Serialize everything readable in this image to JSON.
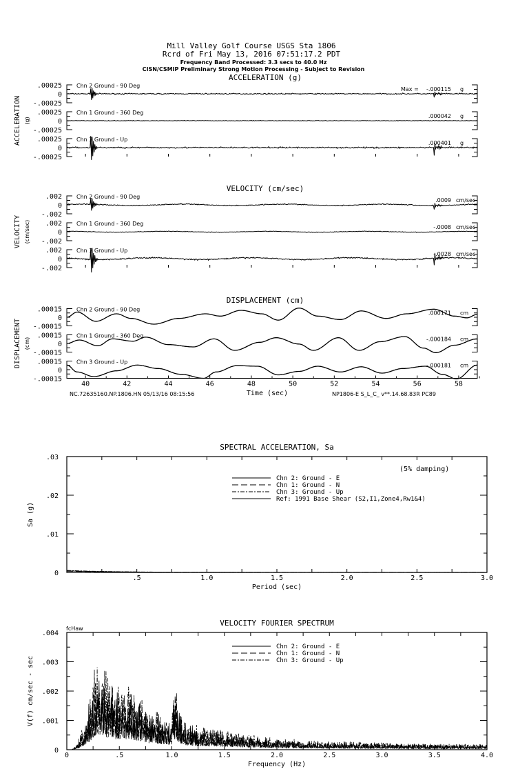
{
  "header": {
    "line1": "Mill Valley Golf Course    USGS Sta 1806",
    "line2": "Rcrd of Fri May 13, 2016 07:51:17.2 PDT",
    "line3": "Frequency Band Processed: 3.3 secs to 40.0 Hz",
    "line4": "CISN/CSMIP Preliminary Strong Motion Processing - Subject to Revision"
  },
  "footer": {
    "left": "NC.72635160.NP.1806.HN 05/13/16 08:15:56",
    "xlabel": "Time (sec)",
    "right": "NP1806-E  S_L_C_  v**.14.68.83R PC89"
  },
  "chart_data": [
    {
      "type": "line",
      "title": "ACCELERATION (g)",
      "ylabel": "ACCELERATION",
      "yunit": "(g)",
      "ylim": [
        -0.00025,
        0.00025
      ],
      "yticks": [
        ".00025",
        "0",
        "-.00025"
      ],
      "xlim": [
        39.1,
        58.9
      ],
      "max_prefix": "Max =",
      "unit": "g",
      "series": [
        {
          "name": "Chn 2  Ground - 90 Deg",
          "max": "-.000115",
          "spikes": [
            40.3,
            56.85
          ],
          "noise": 1.2e-05
        },
        {
          "name": "Chn 1  Ground - 360 Deg",
          "max": ".000042",
          "spikes": [],
          "noise": 6e-06
        },
        {
          "name": "Chn 3  Ground - Up",
          "max": ".000401",
          "spikes": [
            40.3,
            56.85
          ],
          "noise": 1.5e-05
        }
      ]
    },
    {
      "type": "line",
      "title": "VELOCITY (cm/sec)",
      "ylabel": "VELOCITY",
      "yunit": "(cm/sec)",
      "ylim": [
        -0.002,
        0.002
      ],
      "yticks": [
        ".002",
        "0",
        "-.002"
      ],
      "xlim": [
        39.1,
        58.9
      ],
      "unit": "cm/sec",
      "series": [
        {
          "name": "Chn 2  Ground - 90 Deg",
          "max": ".0009",
          "spikes": [
            40.3,
            56.85
          ],
          "noise": 8e-05
        },
        {
          "name": "Chn 1  Ground - 360 Deg",
          "max": "-.0008",
          "spikes": [],
          "noise": 5e-05
        },
        {
          "name": "Chn 3  Ground - Up",
          "max": "-.0028",
          "spikes": [
            40.3,
            56.85
          ],
          "noise": 0.0001
        }
      ]
    },
    {
      "type": "line",
      "title": "DISPLACEMENT (cm)",
      "ylabel": "DISPLACEMENT",
      "yunit": "(cm)",
      "ylim": [
        -0.00015,
        0.00015
      ],
      "yticks": [
        ".00015",
        "0",
        "-.00015"
      ],
      "xlim": [
        39.1,
        58.9
      ],
      "xticks": [
        40,
        42,
        44,
        46,
        48,
        50,
        52,
        54,
        56,
        58
      ],
      "xlabel": "Time (sec)",
      "unit": "cm",
      "series": [
        {
          "name": "Chn 2  Ground - 90 Deg",
          "max": ".000171",
          "points": [
            [
              39.1,
              0
            ],
            [
              39.6,
              9e-05
            ],
            [
              40.5,
              -7e-05
            ],
            [
              41.5,
              6e-05
            ],
            [
              42.2,
              -2e-05
            ],
            [
              43.3,
              -0.00012
            ],
            [
              44.5,
              -2e-05
            ],
            [
              45.8,
              6e-05
            ],
            [
              46.5,
              2e-05
            ],
            [
              47.5,
              0.00012
            ],
            [
              48.5,
              6e-05
            ],
            [
              49.3,
              -5e-05
            ],
            [
              50.3,
              0.00016
            ],
            [
              51.2,
              2e-05
            ],
            [
              52.3,
              -4e-05
            ],
            [
              53.3,
              0.00011
            ],
            [
              54.5,
              -2e-05
            ],
            [
              55.5,
              6e-05
            ],
            [
              56.8,
              0.00014
            ],
            [
              57.8,
              2e-05
            ],
            [
              58.4,
              -1e-05
            ],
            [
              58.9,
              5e-05
            ]
          ]
        },
        {
          "name": "Chn 1  Ground - 360 Deg",
          "max": "-.000184",
          "points": [
            [
              39.1,
              0
            ],
            [
              39.7,
              6e-05
            ],
            [
              40.6,
              -4e-05
            ],
            [
              41.3,
              8e-05
            ],
            [
              42.3,
              4e-05
            ],
            [
              42.9,
              0.00011
            ],
            [
              44.0,
              -2e-05
            ],
            [
              45.2,
              -6e-05
            ],
            [
              46.2,
              8e-05
            ],
            [
              47.2,
              -0.00012
            ],
            [
              48.4,
              2e-05
            ],
            [
              49.2,
              0.0001
            ],
            [
              50.3,
              -1e-05
            ],
            [
              51.0,
              -0.00012
            ],
            [
              52.2,
              0.0001
            ],
            [
              53.2,
              -0.00012
            ],
            [
              54.2,
              3e-05
            ],
            [
              55.4,
              0.00012
            ],
            [
              56.3,
              -8e-05
            ],
            [
              56.9,
              -0.00016
            ],
            [
              57.8,
              -3e-05
            ],
            [
              58.9,
              8e-05
            ]
          ]
        },
        {
          "name": "Chn 3  Ground - Up",
          "max": "-.000181",
          "points": [
            [
              39.1,
              8e-05
            ],
            [
              39.6,
              -4e-05
            ],
            [
              40.4,
              -0.00012
            ],
            [
              41.5,
              -2e-05
            ],
            [
              42.5,
              8e-05
            ],
            [
              43.5,
              2e-05
            ],
            [
              44.6,
              -8e-05
            ],
            [
              45.7,
              -0.00015
            ],
            [
              46.3,
              -4e-05
            ],
            [
              47.3,
              7e-05
            ],
            [
              48.3,
              6e-05
            ],
            [
              49.3,
              -9e-05
            ],
            [
              50.3,
              -3e-05
            ],
            [
              51.2,
              6e-05
            ],
            [
              52.3,
              -4e-05
            ],
            [
              53.3,
              5e-05
            ],
            [
              54.3,
              -6e-05
            ],
            [
              55.3,
              2e-05
            ],
            [
              56.4,
              6e-05
            ],
            [
              57.2,
              -8e-05
            ],
            [
              57.9,
              -0.00016
            ],
            [
              58.9,
              8e-05
            ]
          ]
        }
      ]
    },
    {
      "type": "line",
      "title": "SPECTRAL ACCELERATION, Sa",
      "xlabel": "Period (sec)",
      "ylabel": "Sa (g)",
      "xlim": [
        0,
        3.0
      ],
      "ylim": [
        0,
        0.03
      ],
      "xticks": [
        ".5",
        "1.0",
        "1.5",
        "2.0",
        "2.5",
        "3.0"
      ],
      "yticks": [
        "0",
        ".01",
        ".02",
        ".03"
      ],
      "annotation": "(5% damping)",
      "legend": [
        "Chn 2: Ground - E",
        "Chn 1: Ground - N",
        "Chn 3: Ground - Up",
        "Ref: 1991 Base Shear (S2,I1,Zone4,Rw1&4)"
      ],
      "legend_position": "top-center",
      "series_peak_values": [
        0.0004,
        0.0003,
        0.0005
      ]
    },
    {
      "type": "line",
      "title": "VELOCITY FOURIER SPECTRUM",
      "xlabel": "Frequency (Hz)",
      "ylabel": "V(f)   cm/sec - sec",
      "corner_label": "fcHaw",
      "xlim": [
        0,
        4.0
      ],
      "ylim": [
        0,
        0.004
      ],
      "xticks": [
        "0",
        ".5",
        "1.0",
        "1.5",
        "2.0",
        "2.5",
        "3.0",
        "3.5",
        "4.0"
      ],
      "yticks": [
        "0",
        ".001",
        ".002",
        ".003",
        ".004"
      ],
      "legend": [
        "Chn 2: Ground - E",
        "Chn 1: Ground - N",
        "Chn 3: Ground - Up"
      ],
      "legend_position": "top-right",
      "envelope": [
        [
          0,
          0
        ],
        [
          0.05,
          0
        ],
        [
          0.1,
          0.0002
        ],
        [
          0.2,
          0.0014
        ],
        [
          0.27,
          0.0031
        ],
        [
          0.35,
          0.0028
        ],
        [
          0.5,
          0.0022
        ],
        [
          0.6,
          0.0024
        ],
        [
          0.8,
          0.0014
        ],
        [
          1.0,
          0.0011
        ],
        [
          1.02,
          0.0025
        ],
        [
          1.1,
          0.001
        ],
        [
          1.3,
          0.0008
        ],
        [
          1.6,
          0.0006
        ],
        [
          2.0,
          0.0004
        ],
        [
          2.5,
          0.0003
        ],
        [
          3.0,
          0.00025
        ],
        [
          3.5,
          0.0002
        ],
        [
          4.0,
          0.0002
        ]
      ]
    }
  ]
}
